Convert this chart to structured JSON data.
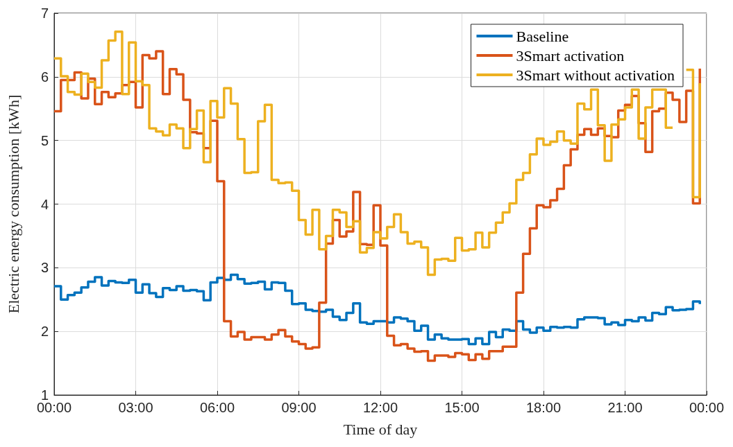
{
  "chart_data": {
    "type": "step",
    "xlabel": "Time of day",
    "ylabel": "Electric energy consumption [kWh]",
    "x": [
      0,
      0.25,
      0.5,
      0.75,
      1,
      1.25,
      1.5,
      1.75,
      2,
      2.25,
      2.5,
      2.75,
      3,
      3.25,
      3.5,
      3.75,
      4,
      4.25,
      4.5,
      4.75,
      5,
      5.25,
      5.5,
      5.75,
      6,
      6.25,
      6.5,
      6.75,
      7,
      7.25,
      7.5,
      7.75,
      8,
      8.25,
      8.5,
      8.75,
      9,
      9.25,
      9.5,
      9.75,
      10,
      10.25,
      10.5,
      10.75,
      11,
      11.25,
      11.5,
      11.75,
      12,
      12.25,
      12.5,
      12.75,
      13,
      13.25,
      13.5,
      13.75,
      14,
      14.25,
      14.5,
      14.75,
      15,
      15.25,
      15.5,
      15.75,
      16,
      16.25,
      16.5,
      16.75,
      17,
      17.25,
      17.5,
      17.75,
      18,
      18.25,
      18.5,
      18.75,
      19,
      19.25,
      19.5,
      19.75,
      20,
      20.25,
      20.5,
      20.75,
      21,
      21.25,
      21.5,
      21.75,
      22,
      22.25,
      22.5,
      22.75,
      23,
      23.25,
      23.5,
      23.75
    ],
    "series": [
      {
        "name": "Baseline",
        "color": "#0072bd",
        "values": [
          2.71,
          2.5,
          2.57,
          2.61,
          2.69,
          2.78,
          2.85,
          2.72,
          2.79,
          2.77,
          2.76,
          2.81,
          2.61,
          2.74,
          2.6,
          2.54,
          2.68,
          2.65,
          2.71,
          2.64,
          2.65,
          2.63,
          2.49,
          2.77,
          2.84,
          2.81,
          2.89,
          2.82,
          2.75,
          2.76,
          2.78,
          2.66,
          2.77,
          2.76,
          2.64,
          2.43,
          2.44,
          2.34,
          2.32,
          2.31,
          2.34,
          2.23,
          2.18,
          2.29,
          2.44,
          2.14,
          2.12,
          2.16,
          2.16,
          2.14,
          2.22,
          2.2,
          2.16,
          2.01,
          2.09,
          1.87,
          1.95,
          1.89,
          1.87,
          1.87,
          1.88,
          1.8,
          1.89,
          1.8,
          1.99,
          1.91,
          2.03,
          2.01,
          2.16,
          2.03,
          1.98,
          2.06,
          2.01,
          2.07,
          2.06,
          2.07,
          2.06,
          2.19,
          2.22,
          2.22,
          2.21,
          2.11,
          2.14,
          2.1,
          2.18,
          2.16,
          2.22,
          2.17,
          2.29,
          2.27,
          2.38,
          2.33,
          2.34,
          2.35,
          2.47,
          2.43
        ]
      },
      {
        "name": "3Smart activation",
        "color": "#d95319",
        "values": [
          5.46,
          5.95,
          5.95,
          6.07,
          5.66,
          5.97,
          5.57,
          5.76,
          5.68,
          5.74,
          5.87,
          5.92,
          5.52,
          6.34,
          6.29,
          6.4,
          5.73,
          6.12,
          6.04,
          5.64,
          5.13,
          5.11,
          4.88,
          5.31,
          4.36,
          2.16,
          1.92,
          1.99,
          1.87,
          1.91,
          1.91,
          1.87,
          1.95,
          2.02,
          1.92,
          1.84,
          1.8,
          1.73,
          1.75,
          2.45,
          3.38,
          3.75,
          3.49,
          3.57,
          4.19,
          3.37,
          3.36,
          3.98,
          3.35,
          1.93,
          1.78,
          1.8,
          1.73,
          1.68,
          1.69,
          1.54,
          1.62,
          1.62,
          1.6,
          1.66,
          1.64,
          1.55,
          1.64,
          1.57,
          1.69,
          1.69,
          1.76,
          1.76,
          2.61,
          3.22,
          3.62,
          3.98,
          3.95,
          4.06,
          4.24,
          4.61,
          4.86,
          5.09,
          5.18,
          5.09,
          5.19,
          5.07,
          5.05,
          5.47,
          5.56,
          5.7,
          5.27,
          4.82,
          5.46,
          5.5,
          5.75,
          5.64,
          5.29,
          5.78,
          4.01,
          6.13
        ]
      },
      {
        "name": "3Smart without activation",
        "color": "#edb120",
        "values": [
          6.29,
          6.01,
          5.76,
          5.72,
          6.05,
          5.92,
          5.83,
          6.26,
          6.57,
          6.71,
          5.73,
          6.54,
          5.93,
          5.87,
          5.19,
          5.14,
          5.08,
          5.25,
          5.19,
          4.88,
          5.18,
          5.47,
          4.66,
          5.62,
          5.36,
          5.82,
          5.58,
          5.02,
          4.49,
          4.5,
          5.3,
          5.56,
          4.38,
          4.33,
          4.34,
          4.21,
          3.75,
          3.52,
          3.91,
          3.29,
          3.5,
          3.91,
          3.87,
          3.64,
          3.73,
          3.24,
          3.31,
          3.56,
          3.46,
          3.64,
          3.84,
          3.56,
          3.38,
          3.41,
          3.32,
          2.89,
          3.13,
          3.14,
          3.11,
          3.47,
          3.27,
          3.29,
          3.55,
          3.32,
          3.55,
          3.71,
          3.87,
          4.01,
          4.38,
          4.49,
          4.78,
          5.03,
          4.93,
          4.98,
          5.14,
          5.0,
          4.95,
          5.58,
          5.49,
          5.8,
          5.24,
          4.68,
          5.25,
          5.33,
          5.52,
          5.8,
          5.03,
          5.52,
          5.8,
          5.8,
          5.2,
          null,
          null,
          6.11,
          4.11,
          5.9
        ]
      }
    ],
    "xlim": [
      0,
      24
    ],
    "xticks": [
      {
        "value": 0,
        "label": "00:00"
      },
      {
        "value": 3,
        "label": "03:00"
      },
      {
        "value": 6,
        "label": "06:00"
      },
      {
        "value": 9,
        "label": "09:00"
      },
      {
        "value": 12,
        "label": "12:00"
      },
      {
        "value": 15,
        "label": "15:00"
      },
      {
        "value": 18,
        "label": "18:00"
      },
      {
        "value": 21,
        "label": "21:00"
      },
      {
        "value": 24,
        "label": "00:00"
      }
    ],
    "ylim": [
      1,
      7
    ],
    "yticks": [
      1,
      2,
      3,
      4,
      5,
      6,
      7
    ],
    "grid": true,
    "legend": "top right",
    "marker": "none",
    "line_style": "solid"
  }
}
